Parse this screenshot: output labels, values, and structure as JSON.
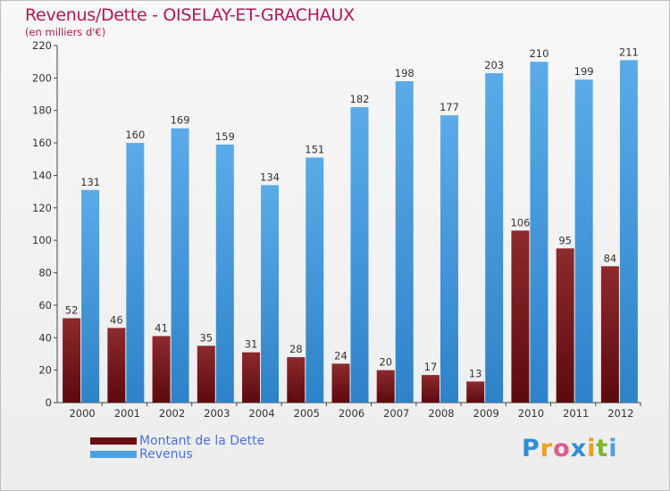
{
  "header": {
    "title": "Revenus/Dette - OISELAY-ET-GRACHAUX",
    "subtitle": "(en milliers d'€)"
  },
  "chart_data": {
    "type": "bar",
    "title": "Revenus/Dette - OISELAY-ET-GRACHAUX",
    "ylabel": "(en milliers d'€)",
    "xlabel": "",
    "categories": [
      "2000",
      "2001",
      "2002",
      "2003",
      "2004",
      "2005",
      "2006",
      "2007",
      "2008",
      "2009",
      "2010",
      "2011",
      "2012"
    ],
    "series": [
      {
        "name": "Montant de la Dette",
        "color": "#7a1e22",
        "values": [
          52,
          46,
          41,
          35,
          31,
          28,
          24,
          20,
          17,
          13,
          106,
          95,
          84
        ]
      },
      {
        "name": "Revenus",
        "color": "#4a9fe0",
        "values": [
          131,
          160,
          169,
          159,
          134,
          151,
          182,
          198,
          177,
          203,
          210,
          199,
          211
        ]
      }
    ],
    "ylim": [
      0,
      220
    ],
    "yticks": [
      0,
      20,
      40,
      60,
      80,
      100,
      120,
      140,
      160,
      180,
      200,
      220
    ],
    "grid": false,
    "legend": "bottom-left"
  },
  "legend": {
    "items": [
      {
        "label": "Montant de la Dette",
        "color": "#6b0f12"
      },
      {
        "label": "Revenus",
        "color": "#4a9fe0"
      }
    ]
  },
  "logo": {
    "letters": [
      "P",
      "r",
      "o",
      "x",
      "i",
      "t",
      "i"
    ],
    "colors": [
      "#2f8fd6",
      "#f0a020",
      "#e05a8a",
      "#2f8fd6",
      "#e8a020",
      "#7ab82a",
      "#4aa0e0"
    ]
  }
}
